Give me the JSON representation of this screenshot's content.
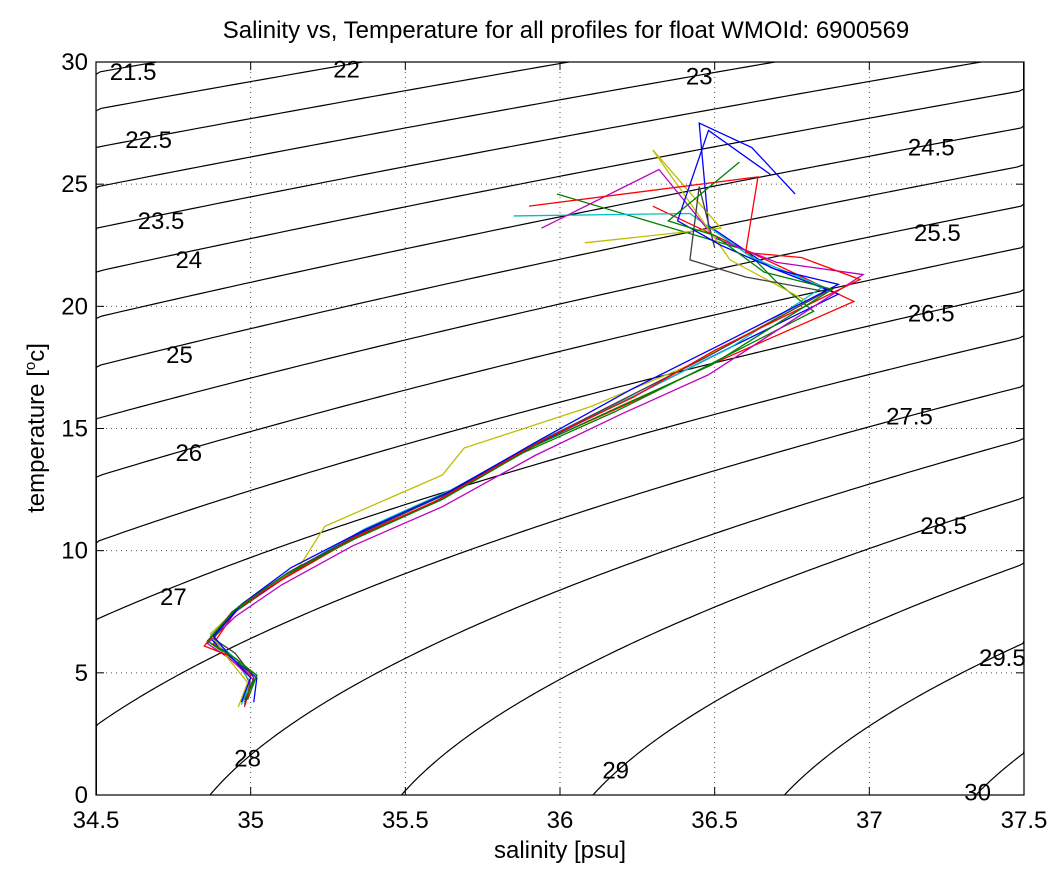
{
  "chart_data": {
    "type": "line",
    "title": "Salinity vs, Temperature for all profiles for float WMOId: 6900569",
    "xlabel": "salinity [psu]",
    "ylabel_prefix": "temperature [",
    "ylabel_sup": "o",
    "ylabel_suffix": "c]",
    "xlim": [
      34.5,
      37.5
    ],
    "ylim": [
      0,
      30
    ],
    "x_ticks": [
      34.5,
      35,
      35.5,
      36,
      36.5,
      37,
      37.5
    ],
    "x_tick_labels": [
      "34.5",
      "35",
      "35.5",
      "36",
      "36.5",
      "37",
      "37.5"
    ],
    "y_ticks": [
      0,
      5,
      10,
      15,
      20,
      25,
      30
    ],
    "y_tick_labels": [
      "0",
      "5",
      "10",
      "15",
      "20",
      "25",
      "30"
    ],
    "grid": true,
    "density_contours": {
      "levels": [
        "21.5",
        "22",
        "22.5",
        "23",
        "23.5",
        "24",
        "24.5",
        "25",
        "25.5",
        "26",
        "26.5",
        "27",
        "27.5",
        "28",
        "28.5",
        "29",
        "29.5",
        "30"
      ],
      "labels": [
        {
          "text": "21.5",
          "x": 34.62,
          "y": 29.6
        },
        {
          "text": "22",
          "x": 35.31,
          "y": 29.7
        },
        {
          "text": "22.5",
          "x": 34.67,
          "y": 26.8
        },
        {
          "text": "23",
          "x": 36.45,
          "y": 29.4
        },
        {
          "text": "23.5",
          "x": 34.71,
          "y": 23.5
        },
        {
          "text": "24",
          "x": 34.8,
          "y": 21.9
        },
        {
          "text": "24.5",
          "x": 37.2,
          "y": 26.5
        },
        {
          "text": "25",
          "x": 34.77,
          "y": 18.0
        },
        {
          "text": "25.5",
          "x": 37.22,
          "y": 23.0
        },
        {
          "text": "26",
          "x": 34.8,
          "y": 14.0
        },
        {
          "text": "26.5",
          "x": 37.2,
          "y": 19.7
        },
        {
          "text": "27",
          "x": 34.75,
          "y": 8.1
        },
        {
          "text": "27.5",
          "x": 37.13,
          "y": 15.5
        },
        {
          "text": "28",
          "x": 34.99,
          "y": 1.5
        },
        {
          "text": "28.5",
          "x": 37.24,
          "y": 11.0
        },
        {
          "text": "29",
          "x": 36.18,
          "y": 1.0
        },
        {
          "text": "29.5",
          "x": 37.43,
          "y": 5.6
        },
        {
          "text": "30",
          "x": 37.35,
          "y": 0.1
        }
      ]
    },
    "series": [
      {
        "color": "#ff0000",
        "points": [
          [
            34.98,
            3.6
          ],
          [
            35.0,
            4.5
          ],
          [
            34.96,
            5.5
          ],
          [
            34.88,
            6.2
          ],
          [
            34.95,
            7.5
          ],
          [
            35.1,
            8.8
          ],
          [
            35.32,
            10.4
          ],
          [
            35.6,
            12.0
          ],
          [
            35.9,
            14.2
          ],
          [
            36.2,
            15.9
          ],
          [
            36.52,
            17.8
          ],
          [
            36.95,
            20.2
          ],
          [
            36.75,
            21.4
          ],
          [
            36.55,
            22.6
          ],
          [
            36.3,
            24.1
          ]
        ]
      },
      {
        "color": "#0000ff",
        "points": [
          [
            35.01,
            3.8
          ],
          [
            35.02,
            4.8
          ],
          [
            34.94,
            5.6
          ],
          [
            34.87,
            6.4
          ],
          [
            34.96,
            7.6
          ],
          [
            35.12,
            9.0
          ],
          [
            35.35,
            10.7
          ],
          [
            35.63,
            12.3
          ],
          [
            35.93,
            14.4
          ],
          [
            36.22,
            16.2
          ],
          [
            36.5,
            18.0
          ],
          [
            36.9,
            20.5
          ],
          [
            36.68,
            21.6
          ],
          [
            36.48,
            23.3
          ],
          [
            36.45,
            27.5
          ],
          [
            36.62,
            26.5
          ],
          [
            36.76,
            24.6
          ]
        ]
      },
      {
        "color": "#008000",
        "points": [
          [
            34.99,
            3.9
          ],
          [
            35.02,
            4.9
          ],
          [
            34.95,
            5.5
          ],
          [
            34.86,
            6.3
          ],
          [
            34.94,
            7.4
          ],
          [
            35.08,
            8.7
          ],
          [
            35.3,
            10.3
          ],
          [
            35.58,
            11.9
          ],
          [
            35.88,
            14.0
          ],
          [
            36.18,
            15.7
          ],
          [
            36.45,
            17.4
          ],
          [
            36.82,
            19.8
          ],
          [
            36.7,
            21.0
          ],
          [
            36.6,
            22.3
          ],
          [
            35.99,
            24.6
          ]
        ]
      },
      {
        "color": "#00bfbf",
        "points": [
          [
            34.97,
            3.7
          ],
          [
            35.0,
            4.6
          ],
          [
            34.94,
            5.7
          ],
          [
            34.87,
            6.5
          ],
          [
            34.97,
            7.8
          ],
          [
            35.14,
            9.2
          ],
          [
            35.37,
            10.9
          ],
          [
            35.65,
            12.5
          ],
          [
            35.95,
            14.6
          ],
          [
            36.25,
            16.4
          ],
          [
            36.55,
            18.3
          ],
          [
            36.85,
            20.8
          ],
          [
            36.62,
            22.0
          ],
          [
            36.42,
            23.8
          ],
          [
            35.85,
            23.7
          ]
        ]
      },
      {
        "color": "#bf00bf",
        "points": [
          [
            34.98,
            3.8
          ],
          [
            35.01,
            4.7
          ],
          [
            34.93,
            5.6
          ],
          [
            34.86,
            6.2
          ],
          [
            34.95,
            7.3
          ],
          [
            35.1,
            8.6
          ],
          [
            35.33,
            10.2
          ],
          [
            35.62,
            11.8
          ],
          [
            35.92,
            13.9
          ],
          [
            36.2,
            15.6
          ],
          [
            36.48,
            17.2
          ],
          [
            36.98,
            21.3
          ],
          [
            36.7,
            21.8
          ],
          [
            36.5,
            22.8
          ],
          [
            36.32,
            25.6
          ],
          [
            35.94,
            23.2
          ]
        ]
      },
      {
        "color": "#bfbf00",
        "points": [
          [
            34.96,
            3.6
          ],
          [
            34.99,
            4.6
          ],
          [
            34.92,
            5.7
          ],
          [
            34.87,
            6.6
          ],
          [
            34.98,
            7.9
          ],
          [
            35.16,
            9.4
          ],
          [
            35.24,
            11.0
          ],
          [
            35.62,
            13.1
          ],
          [
            35.69,
            14.2
          ],
          [
            36.1,
            15.9
          ],
          [
            36.42,
            17.6
          ],
          [
            36.8,
            20.2
          ],
          [
            36.55,
            21.9
          ],
          [
            36.3,
            26.4
          ],
          [
            36.52,
            23.2
          ],
          [
            36.08,
            22.6
          ]
        ]
      },
      {
        "color": "#404040",
        "points": [
          [
            34.98,
            3.7
          ],
          [
            35.01,
            4.8
          ],
          [
            34.95,
            5.8
          ],
          [
            34.88,
            6.4
          ],
          [
            34.96,
            7.7
          ],
          [
            35.12,
            9.1
          ],
          [
            35.34,
            10.6
          ],
          [
            35.61,
            12.2
          ],
          [
            35.91,
            14.3
          ],
          [
            36.19,
            16.1
          ],
          [
            36.47,
            17.9
          ],
          [
            36.86,
            20.6
          ],
          [
            36.6,
            21.2
          ],
          [
            36.42,
            21.9
          ],
          [
            36.45,
            24.9
          ],
          [
            36.5,
            22.4
          ]
        ]
      },
      {
        "color": "#ff0000",
        "points": [
          [
            34.99,
            3.9
          ],
          [
            35.0,
            4.9
          ],
          [
            34.93,
            5.7
          ],
          [
            34.85,
            6.1
          ],
          [
            34.94,
            7.5
          ],
          [
            35.11,
            8.9
          ],
          [
            35.33,
            10.5
          ],
          [
            35.61,
            12.1
          ],
          [
            35.94,
            14.5
          ],
          [
            36.24,
            16.3
          ],
          [
            36.5,
            18.2
          ],
          [
            36.97,
            21.1
          ],
          [
            36.78,
            22.0
          ],
          [
            36.6,
            22.2
          ],
          [
            36.64,
            25.3
          ],
          [
            35.9,
            24.1
          ]
        ]
      },
      {
        "color": "#0000ff",
        "points": [
          [
            34.97,
            3.8
          ],
          [
            35.0,
            4.8
          ],
          [
            34.94,
            5.6
          ],
          [
            34.88,
            6.5
          ],
          [
            34.97,
            7.8
          ],
          [
            35.13,
            9.3
          ],
          [
            35.36,
            10.8
          ],
          [
            35.64,
            12.4
          ],
          [
            35.93,
            14.5
          ],
          [
            36.23,
            16.6
          ],
          [
            36.53,
            18.5
          ],
          [
            36.9,
            20.9
          ],
          [
            36.7,
            21.5
          ],
          [
            36.52,
            22.5
          ],
          [
            36.38,
            23.5
          ],
          [
            36.48,
            27.2
          ],
          [
            36.68,
            25.4
          ]
        ]
      },
      {
        "color": "#008000",
        "points": [
          [
            34.98,
            3.9
          ],
          [
            35.02,
            4.9
          ],
          [
            34.95,
            5.6
          ],
          [
            34.86,
            6.3
          ],
          [
            34.95,
            7.6
          ],
          [
            35.11,
            9.0
          ],
          [
            35.34,
            10.5
          ],
          [
            35.62,
            12.1
          ],
          [
            35.92,
            14.3
          ],
          [
            36.21,
            16.0
          ],
          [
            36.49,
            17.6
          ],
          [
            36.88,
            20.7
          ],
          [
            36.66,
            21.4
          ],
          [
            36.5,
            22.9
          ],
          [
            36.35,
            23.5
          ],
          [
            36.58,
            25.9
          ]
        ]
      }
    ]
  }
}
